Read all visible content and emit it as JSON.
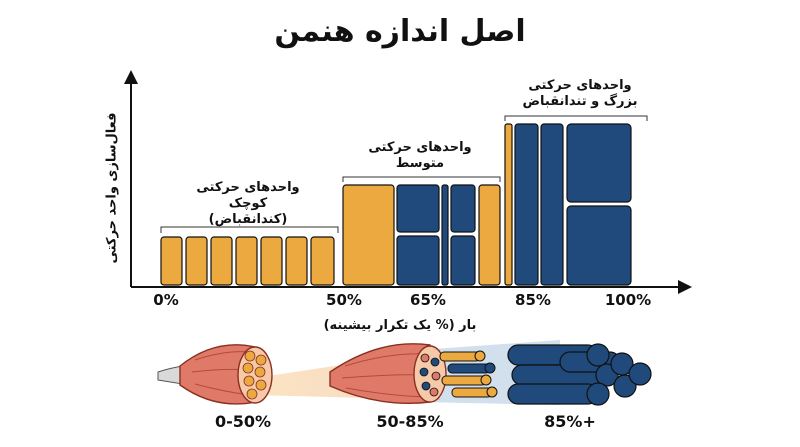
{
  "title": "اصل اندازه هنمن",
  "y_axis_label": "فعال‌سازی واحد حرکتی",
  "x_axis_label": "بار (% یک تکرار بیشینه)",
  "x_ticks": [
    "0%",
    "50%",
    "65%",
    "85%",
    "100%"
  ],
  "groups": [
    {
      "line1": "واحدهای حرکتی",
      "line2": "کوچک",
      "line3": "(کندانقباض)"
    },
    {
      "line1": "واحدهای حرکتی",
      "line2": "متوسط",
      "line3": ""
    },
    {
      "line1": "واحدهای حرکتی",
      "line2": "بزرگ و تندانقباض",
      "line3": ""
    }
  ],
  "ranges": [
    "0-50%",
    "50-85%",
    "+85%"
  ],
  "colors": {
    "slow": "#EBA93F",
    "fast": "#204A7C",
    "muscle": "#E07A68",
    "axis": "#111111"
  }
}
